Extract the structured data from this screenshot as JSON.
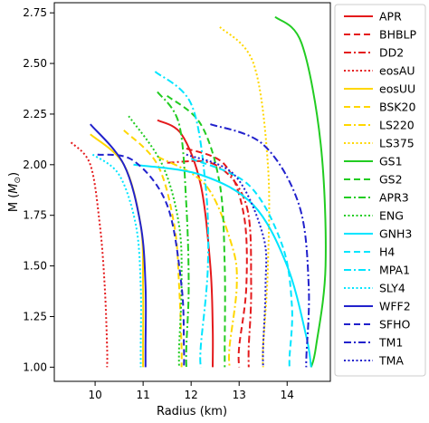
{
  "chart_data": {
    "type": "line",
    "title": "",
    "xlabel": "Radius (km)",
    "ylabel_parts": [
      "M (",
      "M",
      "⊙",
      ")"
    ],
    "xlim": [
      9.15,
      14.9
    ],
    "ylim": [
      0.93,
      2.8
    ],
    "xticks": [
      "10",
      "11",
      "12",
      "13",
      "14"
    ],
    "xtick_values": [
      10,
      11,
      12,
      13,
      14
    ],
    "yticks": [
      "1.00",
      "1.25",
      "1.50",
      "1.75",
      "2.00",
      "2.25",
      "2.50",
      "2.75"
    ],
    "ytick_values": [
      1.0,
      1.25,
      1.5,
      1.75,
      2.0,
      2.25,
      2.5,
      2.75
    ],
    "grid": false,
    "legend_position": "right, outside plot",
    "series": [
      {
        "name": "APR",
        "color": "#e41a1c",
        "dash": "solid",
        "x": [
          11.3,
          11.8,
          12.2,
          12.4,
          12.45,
          12.45
        ],
        "y": [
          2.22,
          2.15,
          1.9,
          1.5,
          1.2,
          1.0
        ]
      },
      {
        "name": "BHBLP",
        "color": "#e41a1c",
        "dash": "dashed",
        "x": [
          11.9,
          12.7,
          13.1,
          13.15,
          13.0,
          13.0
        ],
        "y": [
          2.08,
          2.0,
          1.75,
          1.4,
          1.1,
          1.0
        ]
      },
      {
        "name": "DD2",
        "color": "#e41a1c",
        "dash": "dashdot",
        "x": [
          11.5,
          12.5,
          13.15,
          13.25,
          13.2,
          13.2
        ],
        "y": [
          2.01,
          2.0,
          1.8,
          1.4,
          1.1,
          1.0
        ]
      },
      {
        "name": "eosAU",
        "color": "#e41a1c",
        "dash": "dotted",
        "x": [
          9.5,
          9.9,
          10.1,
          10.2,
          10.25,
          10.25
        ],
        "y": [
          2.11,
          2.0,
          1.7,
          1.4,
          1.1,
          1.0
        ]
      },
      {
        "name": "eosUU",
        "color": "#ffd700",
        "dash": "solid",
        "x": [
          9.9,
          10.6,
          10.95,
          11.0,
          11.0,
          11.0
        ],
        "y": [
          2.15,
          2.0,
          1.7,
          1.4,
          1.1,
          1.0
        ]
      },
      {
        "name": "BSK20",
        "color": "#ffd700",
        "dash": "dashed",
        "x": [
          10.6,
          11.3,
          11.65,
          11.75,
          11.8,
          11.8
        ],
        "y": [
          2.17,
          2.0,
          1.7,
          1.4,
          1.1,
          1.0
        ]
      },
      {
        "name": "LS220",
        "color": "#ffd700",
        "dash": "dashdot",
        "x": [
          11.3,
          12.3,
          12.85,
          12.95,
          12.8,
          12.8
        ],
        "y": [
          2.04,
          1.9,
          1.6,
          1.4,
          1.1,
          1.0
        ]
      },
      {
        "name": "LS375",
        "color": "#ffd700",
        "dash": "dotted",
        "x": [
          12.6,
          13.3,
          13.6,
          13.6,
          13.5,
          13.5
        ],
        "y": [
          2.68,
          2.5,
          2.0,
          1.5,
          1.1,
          1.0
        ]
      },
      {
        "name": "GS1",
        "color": "#22cc22",
        "dash": "solid",
        "x": [
          13.75,
          14.3,
          14.7,
          14.8,
          14.6,
          14.5
        ],
        "y": [
          2.73,
          2.6,
          2.1,
          1.5,
          1.1,
          1.0
        ]
      },
      {
        "name": "GS2",
        "color": "#22cc22",
        "dash": "dashed",
        "x": [
          11.5,
          12.2,
          12.6,
          12.7,
          12.7,
          12.7
        ],
        "y": [
          2.34,
          2.2,
          1.9,
          1.5,
          1.1,
          1.0
        ]
      },
      {
        "name": "APR3",
        "color": "#22cc22",
        "dash": "dashdot",
        "x": [
          11.3,
          11.75,
          11.9,
          11.95,
          11.9,
          11.9
        ],
        "y": [
          2.36,
          2.2,
          1.8,
          1.4,
          1.1,
          1.0
        ]
      },
      {
        "name": "ENG",
        "color": "#22cc22",
        "dash": "dotted",
        "x": [
          10.7,
          11.4,
          11.75,
          11.8,
          11.75,
          11.75
        ],
        "y": [
          2.24,
          2.0,
          1.7,
          1.4,
          1.1,
          1.0
        ]
      },
      {
        "name": "GNH3",
        "color": "#00e5ff",
        "dash": "solid",
        "x": [
          10.8,
          12.2,
          13.3,
          14.0,
          14.4,
          14.5
        ],
        "y": [
          2.0,
          1.95,
          1.8,
          1.5,
          1.15,
          1.0
        ]
      },
      {
        "name": "H4",
        "color": "#00e5ff",
        "dash": "dashed",
        "x": [
          12.0,
          13.2,
          13.9,
          14.1,
          14.05,
          14.05
        ],
        "y": [
          2.03,
          1.9,
          1.6,
          1.3,
          1.05,
          1.0
        ]
      },
      {
        "name": "MPA1",
        "color": "#00e5ff",
        "dash": "dashdot",
        "x": [
          11.25,
          12.0,
          12.3,
          12.35,
          12.2,
          12.2
        ],
        "y": [
          2.46,
          2.3,
          1.9,
          1.5,
          1.1,
          1.0
        ]
      },
      {
        "name": "SLY4",
        "color": "#00e5ff",
        "dash": "dotted",
        "x": [
          9.95,
          10.5,
          10.85,
          10.95,
          10.95,
          10.95
        ],
        "y": [
          2.05,
          1.95,
          1.7,
          1.4,
          1.1,
          1.0
        ]
      },
      {
        "name": "WFF2",
        "color": "#2222cc",
        "dash": "solid",
        "x": [
          9.9,
          10.6,
          10.95,
          11.05,
          11.05,
          11.05
        ],
        "y": [
          2.2,
          2.0,
          1.7,
          1.4,
          1.1,
          1.0
        ]
      },
      {
        "name": "SFHO",
        "color": "#2222cc",
        "dash": "dashed",
        "x": [
          10.05,
          10.8,
          11.5,
          11.8,
          11.85,
          11.85
        ],
        "y": [
          2.05,
          2.02,
          1.8,
          1.4,
          1.1,
          1.0
        ]
      },
      {
        "name": "TM1",
        "color": "#2222cc",
        "dash": "dashdot",
        "x": [
          12.4,
          13.5,
          14.25,
          14.45,
          14.4,
          14.4
        ],
        "y": [
          2.2,
          2.1,
          1.8,
          1.4,
          1.05,
          1.0
        ]
      },
      {
        "name": "TMA",
        "color": "#2222cc",
        "dash": "dotted",
        "x": [
          11.9,
          12.9,
          13.5,
          13.55,
          13.5,
          13.5
        ],
        "y": [
          2.05,
          1.95,
          1.65,
          1.4,
          1.1,
          1.0
        ]
      }
    ]
  }
}
